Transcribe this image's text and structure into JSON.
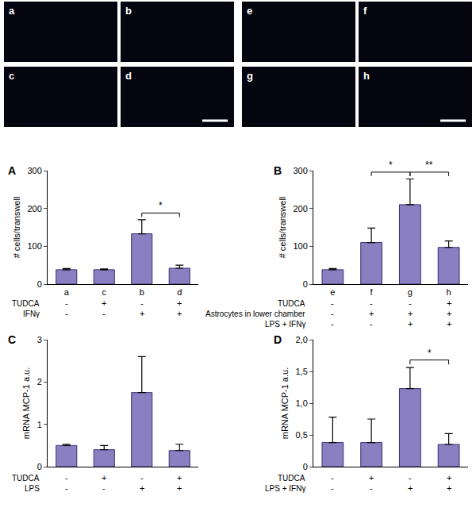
{
  "micrographs": {
    "left": [
      "a",
      "b",
      "c",
      "d"
    ],
    "right": [
      "e",
      "f",
      "g",
      "h"
    ]
  },
  "chart_data": [
    {
      "type": "bar",
      "panel": "A",
      "color": "#8a7fc0",
      "categories": [
        "a",
        "c",
        "b",
        "d"
      ],
      "values": [
        38,
        38,
        133,
        42
      ],
      "errors": [
        3,
        2,
        37,
        8
      ],
      "y_label": "# cells/transwell",
      "ylim": [
        0,
        300
      ],
      "yticks": [
        0,
        100,
        200,
        300
      ],
      "conditions": [
        {
          "label": "TUDCA",
          "signs": [
            "-",
            "+",
            "-",
            "+"
          ]
        },
        {
          "label": "IFNγ",
          "signs": [
            "-",
            "-",
            "+",
            "+"
          ]
        }
      ],
      "significance": [
        {
          "from": 2,
          "to": 3,
          "label": "*"
        }
      ]
    },
    {
      "type": "bar",
      "panel": "B",
      "color": "#8a7fc0",
      "categories": [
        "e",
        "f",
        "g",
        "h"
      ],
      "values": [
        38,
        110,
        210,
        97
      ],
      "errors": [
        3,
        38,
        68,
        17
      ],
      "y_label": "# cells/transwell",
      "ylim": [
        0,
        300
      ],
      "yticks": [
        0,
        100,
        200,
        300
      ],
      "conditions": [
        {
          "label": "TUDCA",
          "signs": [
            "-",
            "-",
            "-",
            "+"
          ]
        },
        {
          "label": "Astrocytes in lower chamber",
          "signs": [
            "-",
            "+",
            "+",
            "+"
          ]
        },
        {
          "label": "LPS + IFNγ",
          "signs": [
            "-",
            "-",
            "+",
            "+"
          ]
        }
      ],
      "significance": [
        {
          "from": 1,
          "to": 2,
          "label": "*"
        },
        {
          "from": 2,
          "to": 3,
          "label": "**"
        }
      ]
    },
    {
      "type": "bar",
      "panel": "C",
      "color": "#8a7fc0",
      "categories": [
        null,
        null,
        null,
        null
      ],
      "values": [
        0.5,
        0.4,
        1.75,
        0.38
      ],
      "errors": [
        0.03,
        0.1,
        0.85,
        0.15
      ],
      "y_label": "mRNA MCP-1 a.u.",
      "ylim": [
        0,
        3
      ],
      "yticks": [
        0,
        1,
        2,
        3
      ],
      "conditions": [
        {
          "label": "TUDCA",
          "signs": [
            "-",
            "+",
            "-",
            "+"
          ]
        },
        {
          "label": "LPS",
          "signs": [
            "-",
            "-",
            "+",
            "+"
          ]
        }
      ],
      "significance": []
    },
    {
      "type": "bar",
      "panel": "D",
      "color": "#8a7fc0",
      "categories": [
        null,
        null,
        null,
        null
      ],
      "values": [
        0.38,
        0.38,
        1.23,
        0.35
      ],
      "errors": [
        0.4,
        0.37,
        0.33,
        0.17
      ],
      "y_label": "mRNA MCP-1 a.u.",
      "ylim": [
        0,
        2
      ],
      "yticks": [
        0,
        {
          "value": 0.5,
          "label": "0,5"
        },
        {
          "value": 1,
          "label": "1,0"
        },
        {
          "value": 1.5,
          "label": "1,5"
        },
        {
          "value": 2,
          "label": "2,0"
        }
      ],
      "conditions": [
        {
          "label": "TUDCA",
          "signs": [
            "-",
            "+",
            "-",
            "+"
          ]
        },
        {
          "label": "LPS + IFNγ",
          "signs": [
            "-",
            "-",
            "+",
            "+"
          ]
        }
      ],
      "significance": [
        {
          "from": 2,
          "to": 3,
          "label": "*"
        }
      ]
    }
  ]
}
